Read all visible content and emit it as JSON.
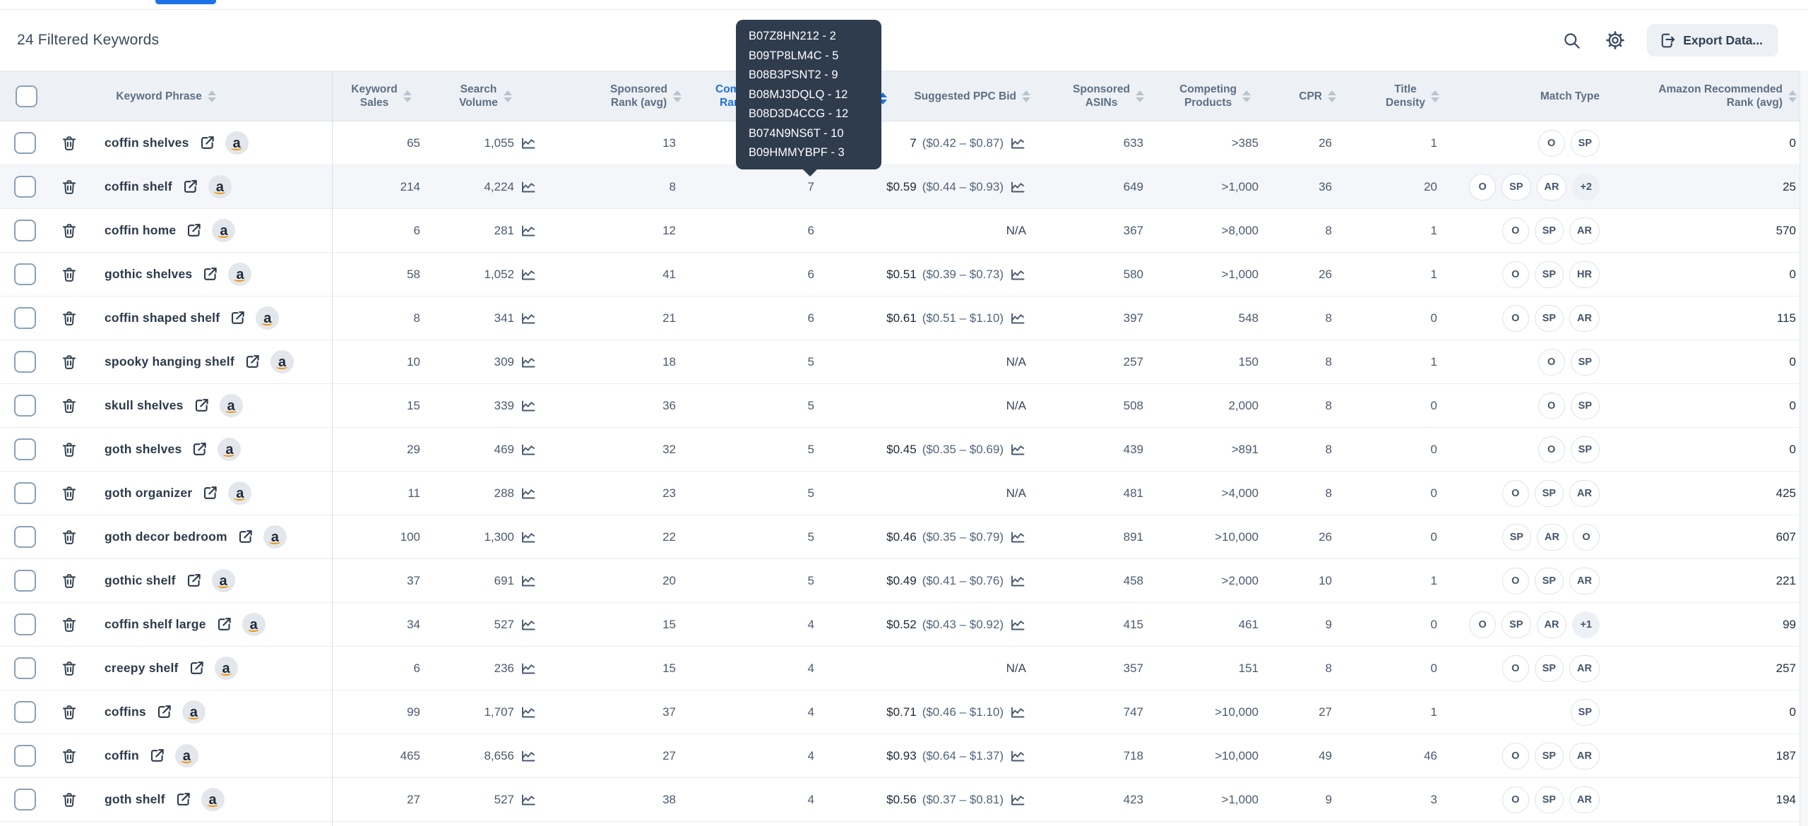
{
  "page": {
    "tab_indicator_color": "#1a73e8"
  },
  "toolbar": {
    "title": "24 Filtered Keywords",
    "search_icon": "magnifier-icon",
    "settings_icon": "gear-icon",
    "export_button_label": "Export Data..."
  },
  "tooltip": {
    "bg_color": "#2e3c4e",
    "text_color": "#ffffff",
    "lines": [
      "B07Z8HN212 - 2",
      "B09TP8LM4C - 5",
      "B08B3PSNT2 - 9",
      "B08MJ3DQLQ - 12",
      "B08D3D4CCG - 12",
      "B074N9NS6T - 10",
      "B09HMMYBPF - 3"
    ]
  },
  "table": {
    "columns": {
      "phrase": "Keyword Phrase",
      "sales": [
        "Keyword",
        "Sales"
      ],
      "volume": [
        "Search",
        "Volume"
      ],
      "sponsored_rank": [
        "Sponsored",
        "Rank (avg)"
      ],
      "competitors_rank": [
        "Competitors",
        "Rank (avg)"
      ],
      "ppc_bid": "Suggested PPC Bid",
      "sponsored_asins": [
        "Sponsored",
        "ASINs"
      ],
      "competing_products": [
        "Competing",
        "Products"
      ],
      "cpr": "CPR",
      "title_density": [
        "Title",
        "Density"
      ],
      "match_type": "Match Type",
      "amazon_rank": [
        "Amazon Recommended",
        "Rank (avg)"
      ]
    },
    "sorted_column": "competitors_rank",
    "sorted_color": "#1d6fdc",
    "hovered_row": 1,
    "rows": [
      {
        "phrase": "coffin shelves",
        "sales": "65",
        "volume": "1,055",
        "sponsored_rank": "13",
        "competitors_rank": "",
        "bid": "7",
        "bid_range": "($0.42 – $0.87)",
        "bid_na": false,
        "sponsored_asins": "633",
        "competing_products": ">385",
        "cpr": "26",
        "title_density": "1",
        "match_types": [
          "O",
          "SP"
        ],
        "amazon_rank": "0"
      },
      {
        "phrase": "coffin shelf",
        "sales": "214",
        "volume": "4,224",
        "sponsored_rank": "8",
        "competitors_rank": "7",
        "bid": "$0.59",
        "bid_range": "($0.44 – $0.93)",
        "bid_na": false,
        "sponsored_asins": "649",
        "competing_products": ">1,000",
        "cpr": "36",
        "title_density": "20",
        "match_types": [
          "O",
          "SP",
          "AR",
          "+2"
        ],
        "amazon_rank": "25"
      },
      {
        "phrase": "coffin home",
        "sales": "6",
        "volume": "281",
        "sponsored_rank": "12",
        "competitors_rank": "6",
        "bid": "",
        "bid_range": "",
        "bid_na": true,
        "sponsored_asins": "367",
        "competing_products": ">8,000",
        "cpr": "8",
        "title_density": "1",
        "match_types": [
          "O",
          "SP",
          "AR"
        ],
        "amazon_rank": "570"
      },
      {
        "phrase": "gothic shelves",
        "sales": "58",
        "volume": "1,052",
        "sponsored_rank": "41",
        "competitors_rank": "6",
        "bid": "$0.51",
        "bid_range": "($0.39 – $0.73)",
        "bid_na": false,
        "sponsored_asins": "580",
        "competing_products": ">1,000",
        "cpr": "26",
        "title_density": "1",
        "match_types": [
          "O",
          "SP",
          "HR"
        ],
        "amazon_rank": "0"
      },
      {
        "phrase": "coffin shaped shelf",
        "sales": "8",
        "volume": "341",
        "sponsored_rank": "21",
        "competitors_rank": "6",
        "bid": "$0.61",
        "bid_range": "($0.51 – $1.10)",
        "bid_na": false,
        "sponsored_asins": "397",
        "competing_products": "548",
        "cpr": "8",
        "title_density": "0",
        "match_types": [
          "O",
          "SP",
          "AR"
        ],
        "amazon_rank": "115"
      },
      {
        "phrase": "spooky hanging shelf",
        "sales": "10",
        "volume": "309",
        "sponsored_rank": "18",
        "competitors_rank": "5",
        "bid": "",
        "bid_range": "",
        "bid_na": true,
        "sponsored_asins": "257",
        "competing_products": "150",
        "cpr": "8",
        "title_density": "1",
        "match_types": [
          "O",
          "SP"
        ],
        "amazon_rank": "0"
      },
      {
        "phrase": "skull shelves",
        "sales": "15",
        "volume": "339",
        "sponsored_rank": "36",
        "competitors_rank": "5",
        "bid": "",
        "bid_range": "",
        "bid_na": true,
        "sponsored_asins": "508",
        "competing_products": "2,000",
        "cpr": "8",
        "title_density": "0",
        "match_types": [
          "O",
          "SP"
        ],
        "amazon_rank": "0"
      },
      {
        "phrase": "goth shelves",
        "sales": "29",
        "volume": "469",
        "sponsored_rank": "32",
        "competitors_rank": "5",
        "bid": "$0.45",
        "bid_range": "($0.35 – $0.69)",
        "bid_na": false,
        "sponsored_asins": "439",
        "competing_products": ">891",
        "cpr": "8",
        "title_density": "0",
        "match_types": [
          "O",
          "SP"
        ],
        "amazon_rank": "0"
      },
      {
        "phrase": "goth organizer",
        "sales": "11",
        "volume": "288",
        "sponsored_rank": "23",
        "competitors_rank": "5",
        "bid": "",
        "bid_range": "",
        "bid_na": true,
        "sponsored_asins": "481",
        "competing_products": ">4,000",
        "cpr": "8",
        "title_density": "0",
        "match_types": [
          "O",
          "SP",
          "AR"
        ],
        "amazon_rank": "425"
      },
      {
        "phrase": "goth decor bedroom",
        "sales": "100",
        "volume": "1,300",
        "sponsored_rank": "22",
        "competitors_rank": "5",
        "bid": "$0.46",
        "bid_range": "($0.35 – $0.79)",
        "bid_na": false,
        "sponsored_asins": "891",
        "competing_products": ">10,000",
        "cpr": "26",
        "title_density": "0",
        "match_types": [
          "SP",
          "AR",
          "O"
        ],
        "amazon_rank": "607"
      },
      {
        "phrase": "gothic shelf",
        "sales": "37",
        "volume": "691",
        "sponsored_rank": "20",
        "competitors_rank": "5",
        "bid": "$0.49",
        "bid_range": "($0.41 – $0.76)",
        "bid_na": false,
        "sponsored_asins": "458",
        "competing_products": ">2,000",
        "cpr": "10",
        "title_density": "1",
        "match_types": [
          "O",
          "SP",
          "AR"
        ],
        "amazon_rank": "221"
      },
      {
        "phrase": "coffin shelf large",
        "sales": "34",
        "volume": "527",
        "sponsored_rank": "15",
        "competitors_rank": "4",
        "bid": "$0.52",
        "bid_range": "($0.43 – $0.92)",
        "bid_na": false,
        "sponsored_asins": "415",
        "competing_products": "461",
        "cpr": "9",
        "title_density": "0",
        "match_types": [
          "O",
          "SP",
          "AR",
          "+1"
        ],
        "amazon_rank": "99"
      },
      {
        "phrase": "creepy shelf",
        "sales": "6",
        "volume": "236",
        "sponsored_rank": "15",
        "competitors_rank": "4",
        "bid": "",
        "bid_range": "",
        "bid_na": true,
        "sponsored_asins": "357",
        "competing_products": "151",
        "cpr": "8",
        "title_density": "0",
        "match_types": [
          "O",
          "SP",
          "AR"
        ],
        "amazon_rank": "257"
      },
      {
        "phrase": "coffins",
        "sales": "99",
        "volume": "1,707",
        "sponsored_rank": "37",
        "competitors_rank": "4",
        "bid": "$0.71",
        "bid_range": "($0.46 – $1.10)",
        "bid_na": false,
        "sponsored_asins": "747",
        "competing_products": ">10,000",
        "cpr": "27",
        "title_density": "1",
        "match_types": [
          "SP"
        ],
        "amazon_rank": "0"
      },
      {
        "phrase": "coffin",
        "sales": "465",
        "volume": "8,656",
        "sponsored_rank": "27",
        "competitors_rank": "4",
        "bid": "$0.93",
        "bid_range": "($0.64 – $1.37)",
        "bid_na": false,
        "sponsored_asins": "718",
        "competing_products": ">10,000",
        "cpr": "49",
        "title_density": "46",
        "match_types": [
          "O",
          "SP",
          "AR"
        ],
        "amazon_rank": "187"
      },
      {
        "phrase": "goth shelf",
        "sales": "27",
        "volume": "527",
        "sponsored_rank": "38",
        "competitors_rank": "4",
        "bid": "$0.56",
        "bid_range": "($0.37 – $0.81)",
        "bid_na": false,
        "sponsored_asins": "423",
        "competing_products": ">1,000",
        "cpr": "9",
        "title_density": "3",
        "match_types": [
          "O",
          "SP",
          "AR"
        ],
        "amazon_rank": "194"
      }
    ],
    "na_label": "N/A"
  }
}
